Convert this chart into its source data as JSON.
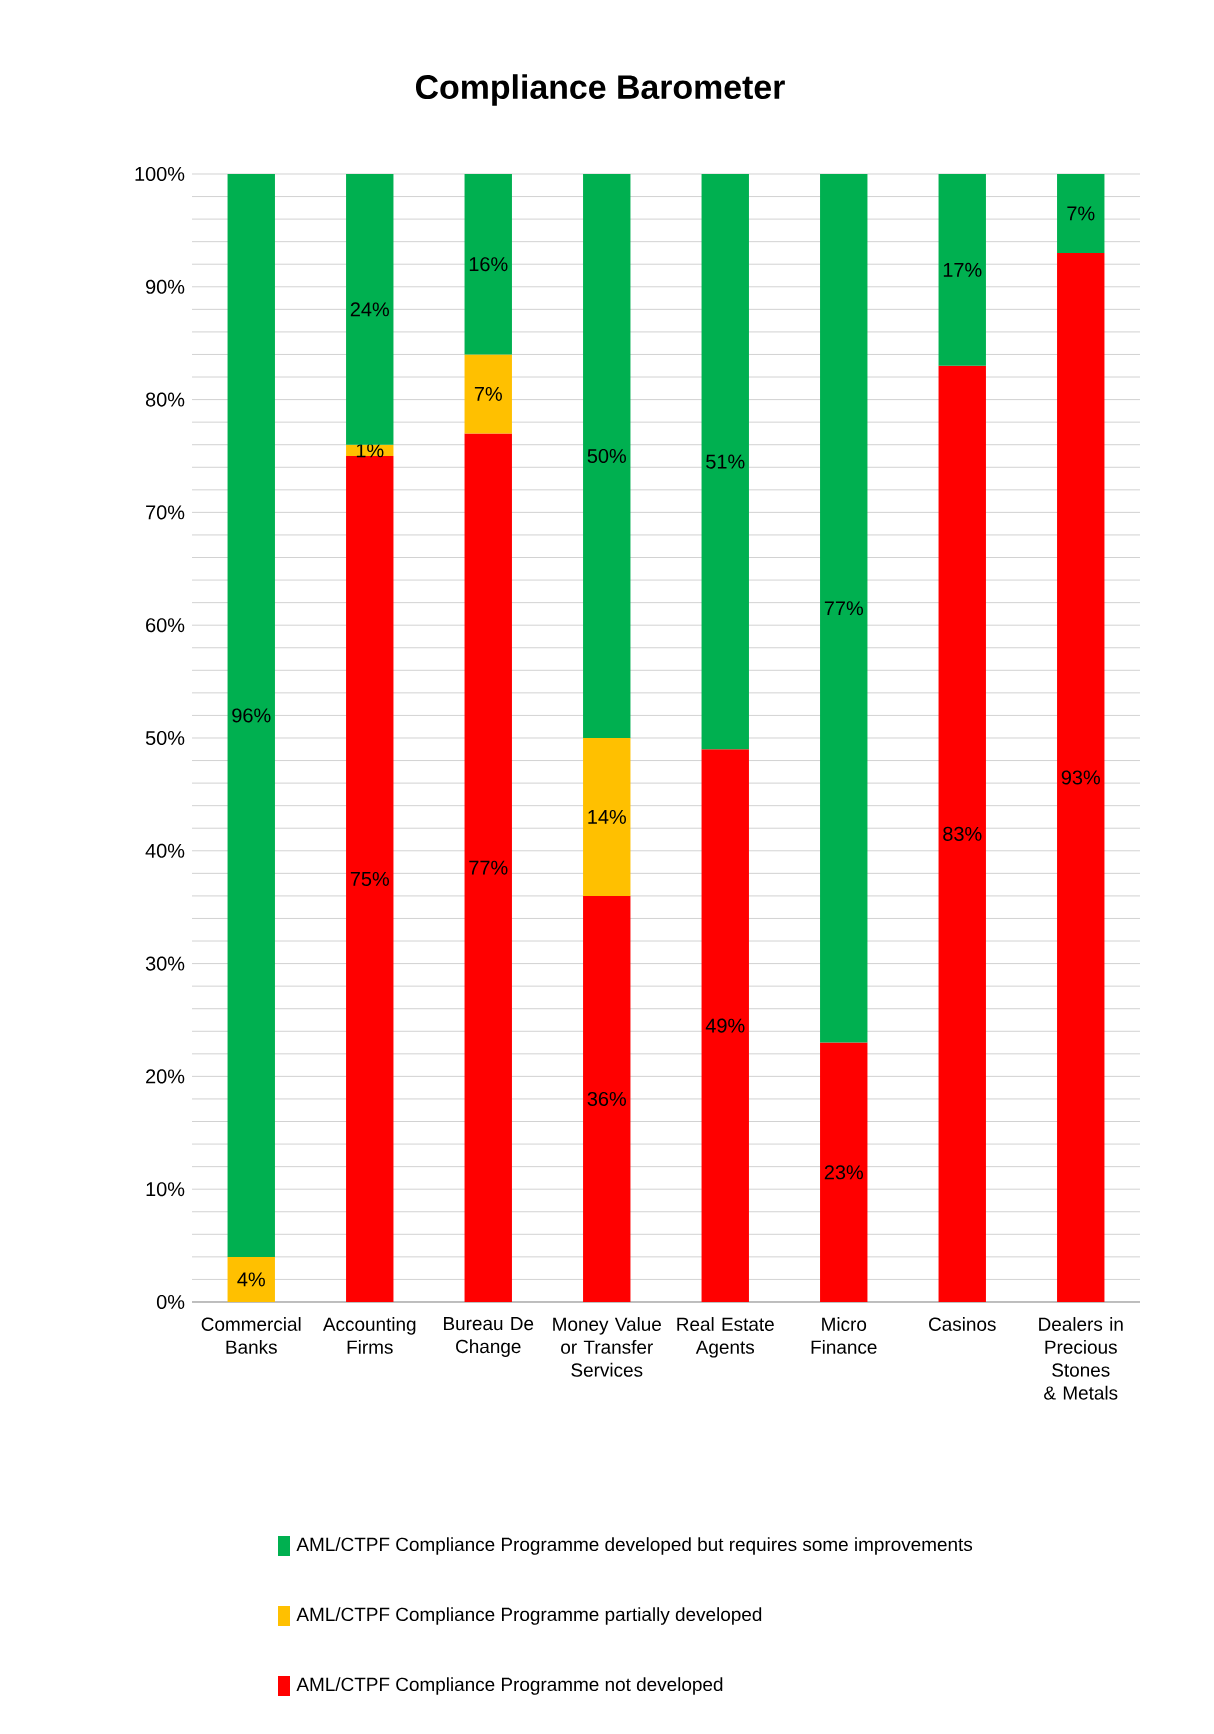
{
  "chart_data": {
    "type": "bar",
    "stacked": true,
    "title": "Compliance Barometer",
    "categories": [
      "Commercial Banks",
      "Accounting Firms",
      "Bureau De Change",
      "Money Value or Transfer Services",
      "Real Estate Agents",
      "Micro Finance",
      "Casinos",
      "Dealers in Precious Stones & Metals"
    ],
    "series": [
      {
        "name": "AML/CTPF Compliance Programme not developed",
        "color": "#ff0000",
        "values": [
          null,
          75,
          77,
          36,
          49,
          23,
          83,
          93
        ],
        "value_labels": [
          null,
          "75%",
          "77%",
          "36%",
          "49%",
          "23%",
          "83%",
          "93%"
        ]
      },
      {
        "name": "AML/CTPF Compliance Programme partially developed",
        "color": "#ffc000",
        "values": [
          4,
          1,
          7,
          14,
          null,
          null,
          null,
          null
        ],
        "value_labels": [
          "4%",
          "1%",
          "7%",
          "14%",
          null,
          null,
          null,
          null
        ]
      },
      {
        "name": "AML/CTPF Compliance Programme developed but requires some improvements",
        "color": "#00b050",
        "values": [
          96,
          24,
          16,
          50,
          51,
          77,
          17,
          7
        ],
        "value_labels": [
          "96%",
          "24%",
          "16%",
          "50%",
          "51%",
          "77%",
          "17%",
          "7%"
        ]
      }
    ],
    "ylim": [
      0,
      100
    ],
    "yticks": [
      {
        "value": 0,
        "label": "0%"
      },
      {
        "value": 10,
        "label": "10%"
      },
      {
        "value": 20,
        "label": "20%"
      },
      {
        "value": 30,
        "label": "30%"
      },
      {
        "value": 40,
        "label": "40%"
      },
      {
        "value": 50,
        "label": "50%"
      },
      {
        "value": 60,
        "label": "60%"
      },
      {
        "value": 70,
        "label": "70%"
      },
      {
        "value": 80,
        "label": "80%"
      },
      {
        "value": 90,
        "label": "90%"
      },
      {
        "value": 100,
        "label": "100%"
      }
    ],
    "grid": "y",
    "legend": "bottom"
  }
}
